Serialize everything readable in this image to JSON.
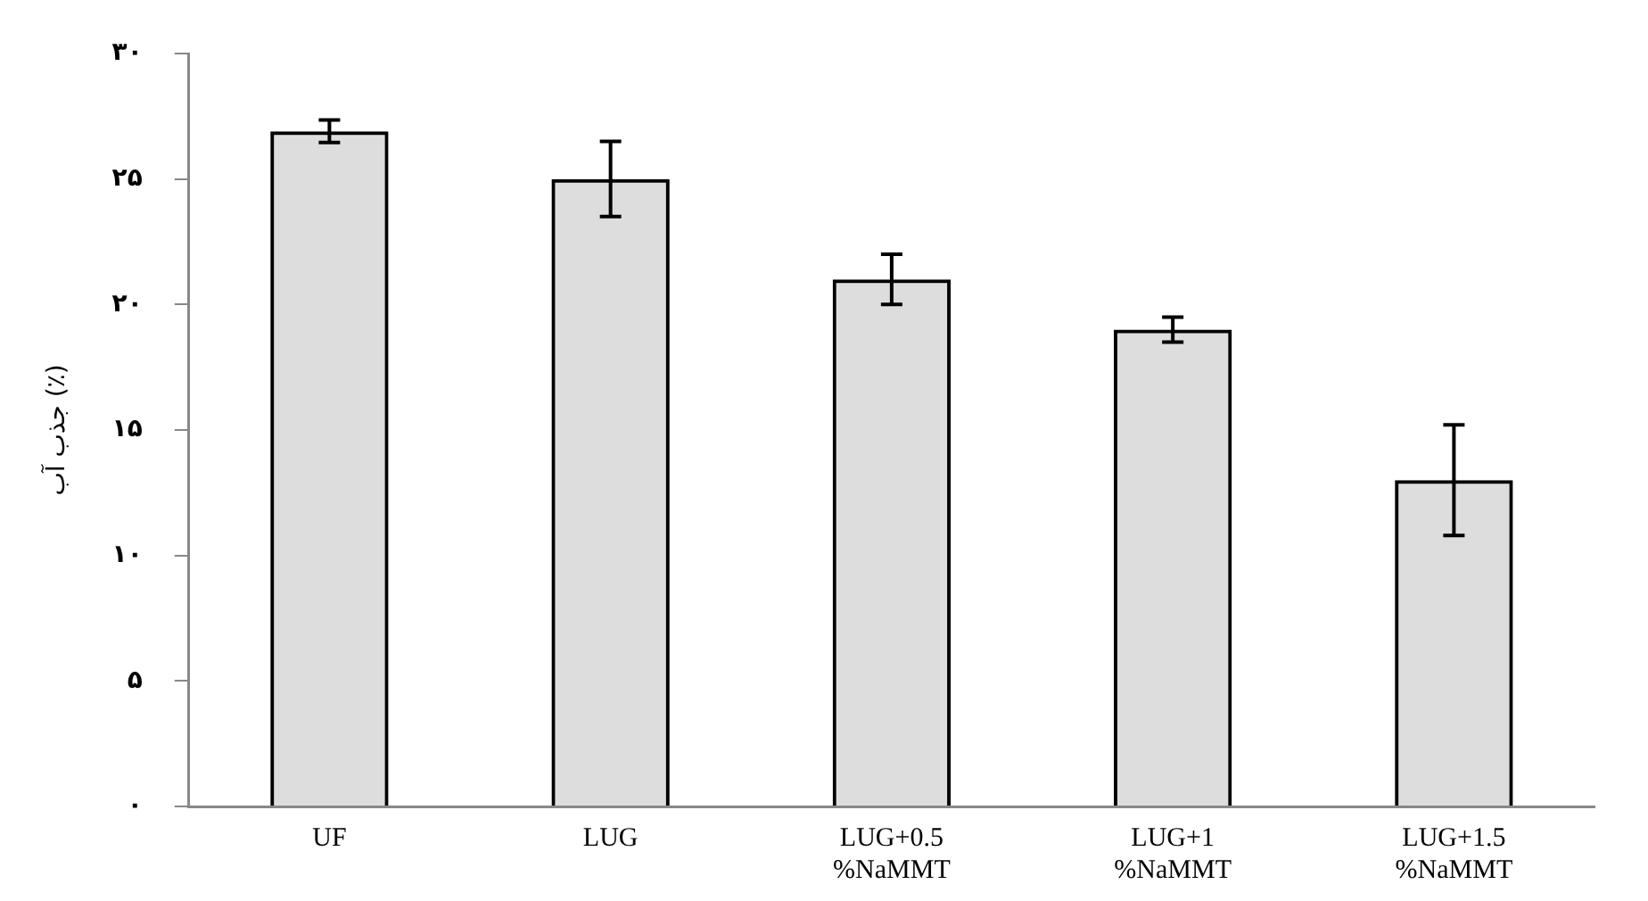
{
  "chart_data": {
    "type": "bar",
    "ylabel": "جذب آب (٪)",
    "categories": [
      "UF",
      "LUG",
      "LUG+0.5\n%NaMMT",
      "LUG+1\n%NaMMT",
      "LUG+1.5\n%NaMMT"
    ],
    "values": [
      26.9,
      25.0,
      21.0,
      19.0,
      13.0
    ],
    "errors": [
      0.45,
      1.5,
      1.0,
      0.5,
      2.2
    ],
    "color": "#000000",
    "ylim": [
      0,
      30
    ],
    "yticks": [
      {
        "value": 0,
        "label": "۰"
      },
      {
        "value": 5,
        "label": "۵"
      },
      {
        "value": 10,
        "label": "۱۰"
      },
      {
        "value": 15,
        "label": "۱۵"
      },
      {
        "value": 20,
        "label": "۲۰"
      },
      {
        "value": 25,
        "label": "۲۵"
      },
      {
        "value": 30,
        "label": "۳۰"
      }
    ],
    "grid": false,
    "legend": false
  }
}
